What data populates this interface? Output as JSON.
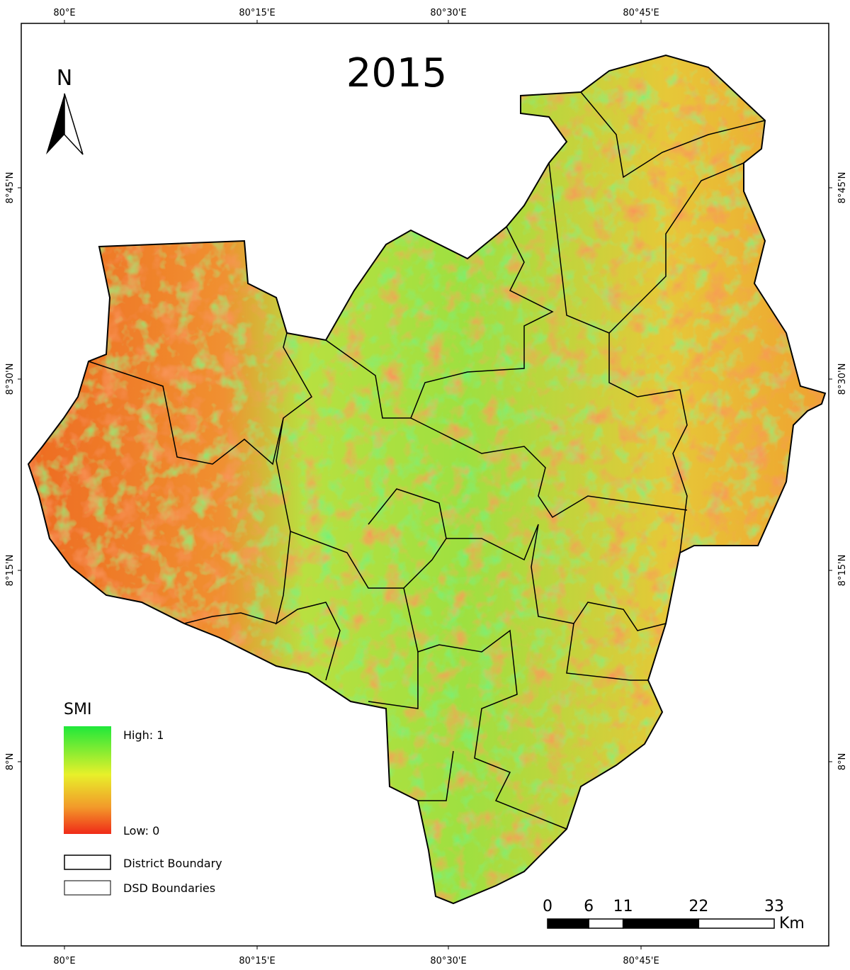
{
  "title": "2015",
  "north_arrow": "N",
  "graticule": {
    "longitudes": [
      "80°E",
      "80°15'E",
      "80°30'E",
      "80°45'E"
    ],
    "latitudes": [
      "8°45'N",
      "8°30'N",
      "8°15'N",
      "8°N"
    ]
  },
  "legend": {
    "title": "SMI",
    "high": "High: 1",
    "low": "Low: 0",
    "items": [
      "District Boundary",
      "DSD Boundaries"
    ]
  },
  "scale_bar": {
    "ticks": [
      0,
      6,
      11,
      22,
      33
    ],
    "unit": "Km"
  }
}
